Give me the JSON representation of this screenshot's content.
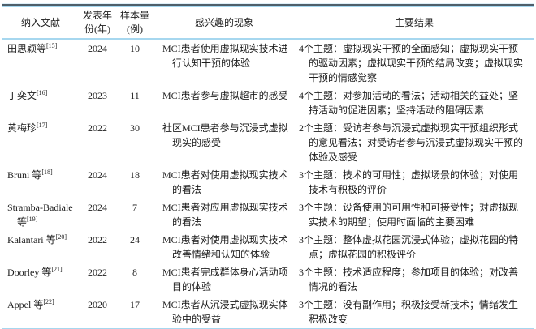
{
  "colors": {
    "rule_light_blue": "#a6d7ef",
    "rule_dark_slate": "#4f5f6a",
    "text": "#1d1d1d",
    "background": "#ffffff"
  },
  "table": {
    "headers": [
      "纳入文献",
      "发表年份(年)",
      "样本量(例)",
      "感兴趣的现象",
      "主要结果"
    ],
    "rows": [
      {
        "author": "田思颖等",
        "ref": "[15]",
        "year": "2024",
        "n": "10",
        "phenomenon": "MCI患者使用虚拟现实技术进行认知干预的体验",
        "results": "4个主题：虚拟现实干预的全面感知；虚拟现实干预的驱动因素；虚拟现实干预的结局改变；虚拟现实干预的情感觉察"
      },
      {
        "author": "丁奕文",
        "ref": "[16]",
        "year": "2023",
        "n": "11",
        "phenomenon": "MCI患者参与虚拟超市的感受",
        "results": "4个主题：对参加活动的看法；活动相关的益处；坚持活动的促进因素；坚持活动的阻碍因素"
      },
      {
        "author": "黄梅珍",
        "ref": "[17]",
        "year": "2022",
        "n": "30",
        "phenomenon": "社区MCI患者参与沉浸式虚拟现实的感受",
        "results": "2个主题：受访者参与沉浸式虚拟现实干预组织形式的意见看法；对受访者参与沉浸式虚拟现实干预的体验及感受"
      },
      {
        "author": "Bruni 等",
        "ref": "[18]",
        "year": "2024",
        "n": "18",
        "phenomenon": "MCI患者对使用虚拟现实技术的看法",
        "results": "3个主题：技术的可用性；虚拟场景的体验；对使用技术有积极的评价"
      },
      {
        "author": "Stramba-Badiale 等",
        "ref": "[19]",
        "year": "2024",
        "n": "7",
        "phenomenon": "MCI患者对应用虚拟现实技术的看法",
        "results": "3个主题：设备使用的可用性和可接受性；对虚拟现实技术的期望；使用时面临的主要困难"
      },
      {
        "author": "Kalantari 等",
        "ref": "[20]",
        "year": "2022",
        "n": "24",
        "phenomenon": "MCI患者对使用虚拟现实技术改善情绪和认知的体验",
        "results": "3个主题：整体虚拟花园沉浸式体验；虚拟花园的特点；虚拟花园的积极评价"
      },
      {
        "author": "Doorley 等",
        "ref": "[21]",
        "year": "2022",
        "n": "8",
        "phenomenon": "MCI患者完成群体身心活动项目的体验",
        "results": "3个主题：技术适应程度；参加项目的体验；对改善情况的看法"
      },
      {
        "author": "Appel 等",
        "ref": "[22]",
        "year": "2020",
        "n": "17",
        "phenomenon": "MCI患者从沉浸式虚拟现实体验中的受益",
        "results": "3个主题：没有副作用；积极接受新技术；情绪发生积极改变"
      }
    ]
  }
}
